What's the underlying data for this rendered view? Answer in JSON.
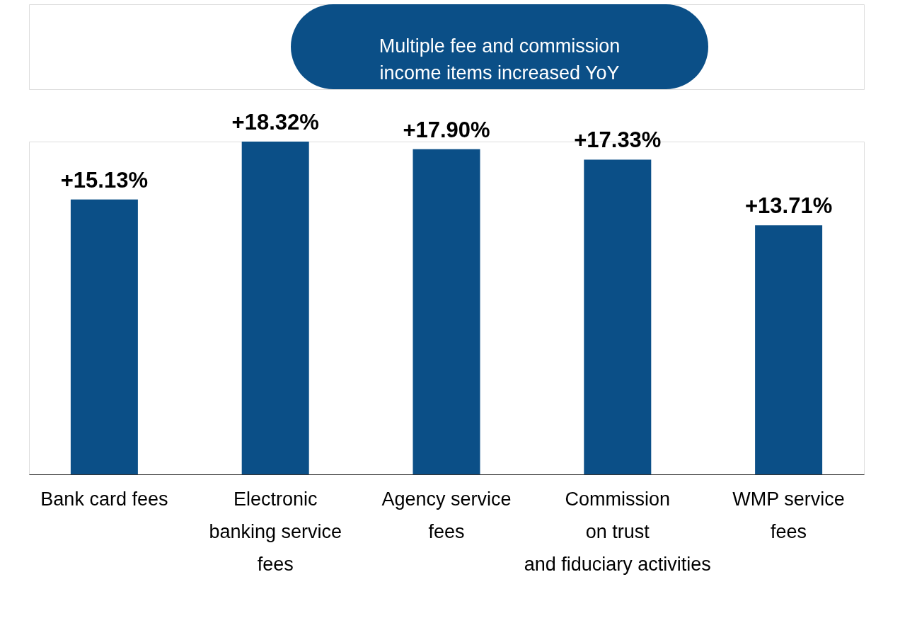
{
  "chart_data": {
    "type": "bar",
    "title": "Multiple fee and commission income items increased YoY",
    "categories": [
      "Bank card fees",
      "Electronic\nbanking service\nfees",
      "Agency service\nfees",
      "Commission\non trust\nand fiduciary activities",
      "WMP service\nfees"
    ],
    "values": [
      15.13,
      18.32,
      17.9,
      17.33,
      13.71
    ],
    "value_labels": [
      "+15.13%",
      "+18.32%",
      "+17.90%",
      "+17.33%",
      "+13.71%"
    ],
    "color": "#0b4f87",
    "grid": false
  }
}
